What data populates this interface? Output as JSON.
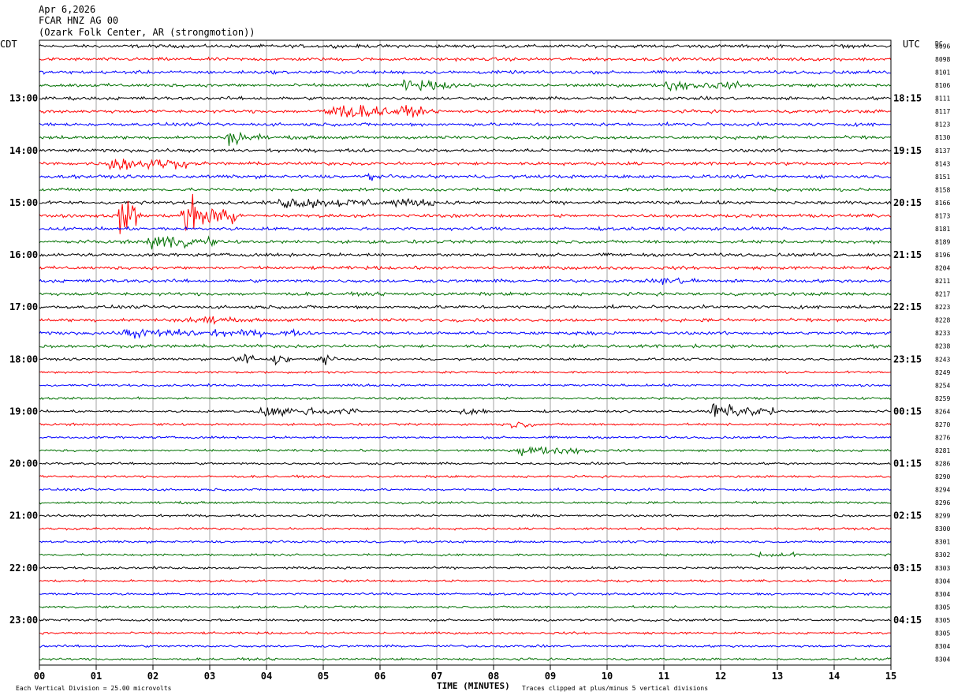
{
  "header": {
    "line1": "Apr 6,2026",
    "line2": "FCAR HNZ AG 00",
    "line3": "(Ozark Folk Center, AR (strongmotion))"
  },
  "left_tz": "CDT",
  "right_tz": "UTC",
  "right_dc_header": "DC",
  "footer": {
    "left": "Each Vertical Division =   25.00 microvolts",
    "center": "TIME (MINUTES)",
    "right": "Traces clipped at plus/minus 5 vertical divisions"
  },
  "colors": {
    "trace_cycle": [
      "#000000",
      "#ff0000",
      "#0000ff",
      "#007000"
    ],
    "grid": "#8c8c8c",
    "text": "#000000"
  },
  "chart_data": {
    "type": "line",
    "title": "",
    "xlabel": "TIME (MINUTES)",
    "ylabel": "",
    "xlim": [
      0,
      15
    ],
    "x_ticks": [
      "00",
      "01",
      "02",
      "03",
      "04",
      "05",
      "06",
      "07",
      "08",
      "09",
      "10",
      "11",
      "12",
      "13",
      "14",
      "15"
    ],
    "trace_count": 48,
    "traces_per_hour": 4,
    "left_hour_labels": [
      {
        "trace_index": 4,
        "label": "13:00"
      },
      {
        "trace_index": 8,
        "label": "14:00"
      },
      {
        "trace_index": 12,
        "label": "15:00"
      },
      {
        "trace_index": 16,
        "label": "16:00"
      },
      {
        "trace_index": 20,
        "label": "17:00"
      },
      {
        "trace_index": 24,
        "label": "18:00"
      },
      {
        "trace_index": 28,
        "label": "19:00"
      },
      {
        "trace_index": 32,
        "label": "20:00"
      },
      {
        "trace_index": 36,
        "label": "21:00"
      },
      {
        "trace_index": 40,
        "label": "22:00"
      },
      {
        "trace_index": 44,
        "label": "23:00"
      }
    ],
    "right_hour_labels": [
      {
        "trace_index": 4,
        "label": "18:15"
      },
      {
        "trace_index": 8,
        "label": "19:15"
      },
      {
        "trace_index": 12,
        "label": "20:15"
      },
      {
        "trace_index": 16,
        "label": "21:15"
      },
      {
        "trace_index": 20,
        "label": "22:15"
      },
      {
        "trace_index": 24,
        "label": "23:15"
      },
      {
        "trace_index": 28,
        "label": "00:15"
      },
      {
        "trace_index": 32,
        "label": "01:15"
      },
      {
        "trace_index": 36,
        "label": "02:15"
      },
      {
        "trace_index": 40,
        "label": "03:15"
      },
      {
        "trace_index": 44,
        "label": "04:15"
      }
    ],
    "dc_offsets": [
      "8096",
      "8098",
      "8101",
      "8106",
      "8111",
      "8117",
      "8123",
      "8130",
      "8137",
      "8143",
      "8151",
      "8158",
      "8166",
      "8173",
      "8181",
      "8189",
      "8196",
      "8204",
      "8211",
      "8217",
      "8223",
      "8228",
      "8233",
      "8238",
      "8243",
      "8249",
      "8254",
      "8259",
      "8264",
      "8270",
      "8276",
      "8281",
      "8286",
      "8290",
      "8294",
      "8296",
      "8299",
      "8300",
      "8301",
      "8302",
      "8303",
      "8304",
      "8304",
      "8305",
      "8305",
      "8305",
      "8304",
      "8304"
    ],
    "events": [
      {
        "trace_index": 3,
        "start": 6.4,
        "end": 7.4,
        "amp": 0.6
      },
      {
        "trace_index": 3,
        "start": 11.0,
        "end": 12.3,
        "amp": 0.5
      },
      {
        "trace_index": 5,
        "start": 5.0,
        "end": 6.8,
        "amp": 0.9
      },
      {
        "trace_index": 7,
        "start": 3.3,
        "end": 3.9,
        "amp": 0.8
      },
      {
        "trace_index": 9,
        "start": 1.2,
        "end": 2.6,
        "amp": 0.9
      },
      {
        "trace_index": 10,
        "start": 5.7,
        "end": 5.9,
        "amp": 0.6
      },
      {
        "trace_index": 12,
        "start": 4.2,
        "end": 7.0,
        "amp": 0.5
      },
      {
        "trace_index": 13,
        "start": 1.4,
        "end": 1.8,
        "amp": 2.6
      },
      {
        "trace_index": 13,
        "start": 2.5,
        "end": 3.5,
        "amp": 2.4
      },
      {
        "trace_index": 15,
        "start": 1.9,
        "end": 3.1,
        "amp": 0.9
      },
      {
        "trace_index": 18,
        "start": 10.9,
        "end": 11.6,
        "amp": 0.4
      },
      {
        "trace_index": 21,
        "start": 2.6,
        "end": 3.4,
        "amp": 0.5
      },
      {
        "trace_index": 22,
        "start": 1.4,
        "end": 4.6,
        "amp": 0.4
      },
      {
        "trace_index": 24,
        "start": 3.4,
        "end": 3.8,
        "amp": 1.0
      },
      {
        "trace_index": 24,
        "start": 4.1,
        "end": 4.5,
        "amp": 0.7
      },
      {
        "trace_index": 24,
        "start": 4.9,
        "end": 5.2,
        "amp": 0.7
      },
      {
        "trace_index": 28,
        "start": 3.8,
        "end": 5.6,
        "amp": 0.6
      },
      {
        "trace_index": 28,
        "start": 7.4,
        "end": 7.9,
        "amp": 0.6
      },
      {
        "trace_index": 28,
        "start": 11.8,
        "end": 13.0,
        "amp": 1.0
      },
      {
        "trace_index": 29,
        "start": 8.3,
        "end": 8.7,
        "amp": 0.4
      },
      {
        "trace_index": 31,
        "start": 8.4,
        "end": 9.8,
        "amp": 0.5
      },
      {
        "trace_index": 39,
        "start": 12.6,
        "end": 13.4,
        "amp": 0.3
      }
    ]
  }
}
